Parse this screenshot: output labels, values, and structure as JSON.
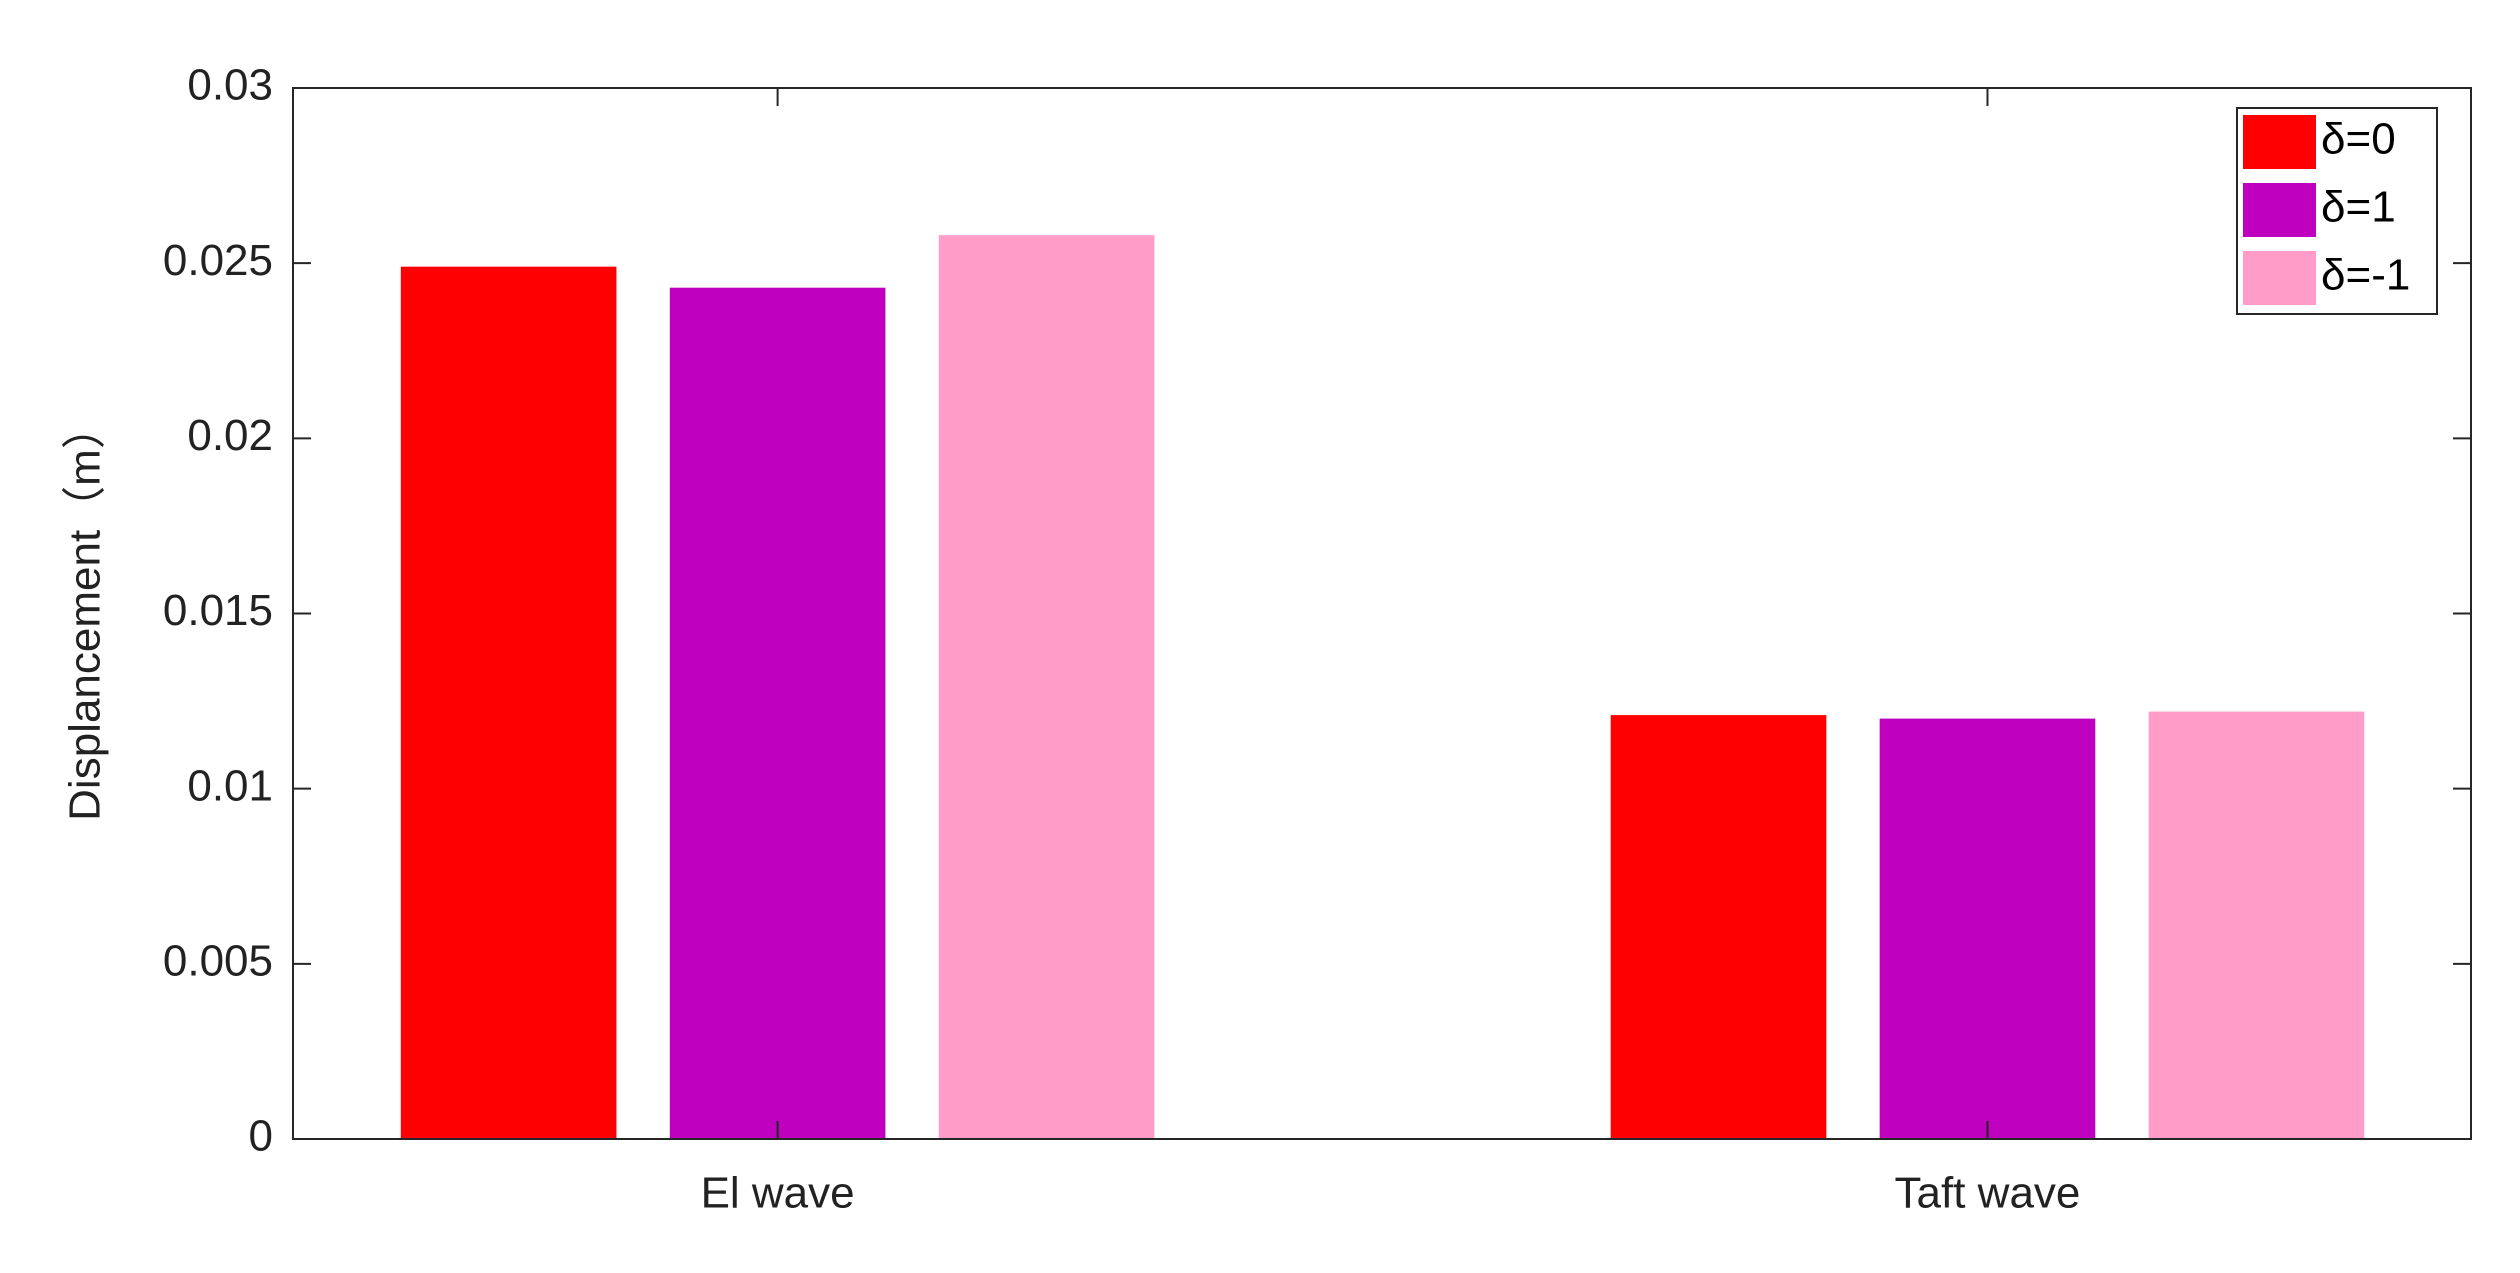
{
  "chart_data": {
    "type": "bar",
    "ylabel": "Displancement（m）",
    "categories": [
      "El wave",
      "Taft wave"
    ],
    "series": [
      {
        "name": "δ=0",
        "color": "#ff0000",
        "values": [
          0.0249,
          0.0121
        ]
      },
      {
        "name": "δ=1",
        "color": "#bf00bf",
        "values": [
          0.0243,
          0.012
        ]
      },
      {
        "name": "δ=-1",
        "color": "#ff9cc8",
        "values": [
          0.0258,
          0.0122
        ]
      }
    ],
    "ylim": [
      0,
      0.03
    ],
    "yticks": [
      0,
      0.005,
      0.01,
      0.015,
      0.02,
      0.025,
      0.03
    ],
    "grid": false,
    "legend": "top-right"
  }
}
